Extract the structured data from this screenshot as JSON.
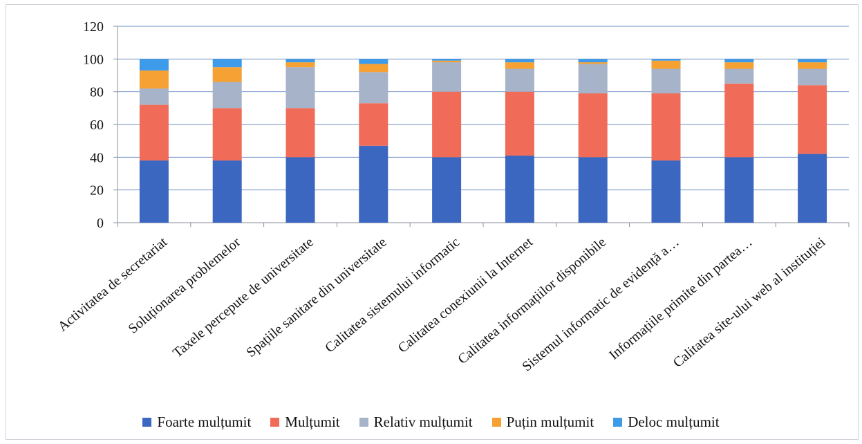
{
  "chart_data": {
    "type": "bar",
    "stacked": true,
    "categories": [
      "Activitatea de secretariat",
      "Soluționarea problemelor",
      "Taxele percepute de universitate",
      "Spațiile sanitare din universitate",
      "Calitatea sistemului informatic",
      "Calitatea conexiunii la Internet",
      "Calitatea informațiilor disponibile",
      "Sistemul informatic de evidență a…",
      "Informațiile primite din partea…",
      "Calitatea site-ului web al instituției"
    ],
    "series": [
      {
        "name": "Foarte mulțumit",
        "color": "#3b67c0",
        "values": [
          38,
          38,
          40,
          47,
          40,
          41,
          40,
          38,
          40,
          42
        ]
      },
      {
        "name": "Mulțumit",
        "color": "#f06b58",
        "values": [
          34,
          32,
          30,
          26,
          40,
          39,
          39,
          41,
          45,
          42
        ]
      },
      {
        "name": "Relativ mulțumit",
        "color": "#a7b3c9",
        "values": [
          10,
          16,
          25,
          19,
          18,
          14,
          18,
          15,
          9,
          10
        ]
      },
      {
        "name": "Puțin mulțumit",
        "color": "#f5a133",
        "values": [
          11,
          9,
          3,
          5,
          1,
          4,
          1,
          5,
          4,
          4
        ]
      },
      {
        "name": "Deloc mulțumit",
        "color": "#3d9be9",
        "values": [
          7,
          5,
          2,
          3,
          1,
          2,
          2,
          1,
          2,
          2
        ]
      }
    ],
    "ylim": [
      0,
      120
    ],
    "yticks": [
      0,
      20,
      40,
      60,
      80,
      100,
      120
    ],
    "grid": true,
    "legend_position": "bottom"
  }
}
